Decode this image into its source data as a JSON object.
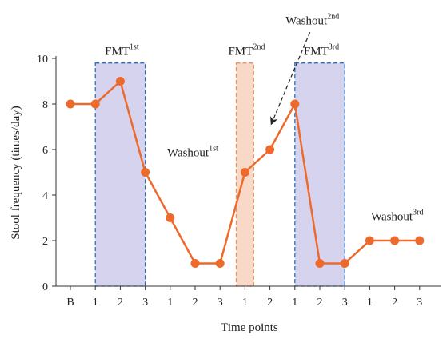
{
  "chart_data": {
    "type": "line",
    "xlabel": "Time points",
    "ylabel": "Stool frequency (times/day)",
    "ylim": [
      0,
      10
    ],
    "yticks": [
      0,
      2,
      4,
      6,
      8,
      10
    ],
    "categories": [
      "B",
      "1",
      "2",
      "3",
      "1",
      "2",
      "3",
      "1",
      "2",
      "1",
      "2",
      "3",
      "1",
      "2",
      "3"
    ],
    "series": [
      {
        "values": [
          8,
          8,
          9,
          5,
          3,
          1,
          1,
          5,
          6,
          8,
          1,
          1,
          2,
          2,
          2
        ]
      }
    ],
    "grid": false,
    "legend": "none",
    "colors": {
      "line": "#ee6a2c",
      "fmt_fill": "#d5d3ee",
      "fmt_border": "#2d6fb8",
      "fmt2_fill": "#f8d8c6",
      "fmt2_border": "#e0956a",
      "axis": "#333333",
      "arrow": "#222222"
    },
    "periods": [
      {
        "label": "FMT",
        "sup": "1st",
        "start_index": 1,
        "end_index": 3,
        "ymax": 9.8,
        "style": "fmt"
      },
      {
        "label": "FMT",
        "sup": "2nd",
        "start_index": 6.65,
        "end_index": 7.35,
        "ymax": 9.8,
        "style": "fmt2"
      },
      {
        "label": "FMT",
        "sup": "3rd",
        "start_index": 9,
        "end_index": 11,
        "ymax": 9.8,
        "style": "fmt"
      }
    ],
    "annotations": [
      {
        "label": "Washout",
        "sup": "1st",
        "x_index": 4.9,
        "y": 5.7
      },
      {
        "label": "Washout",
        "sup": "2nd",
        "x_index": 9.7,
        "y": 11.5,
        "arrow_to": {
          "x_index": 8.0,
          "y": 7.0
        }
      },
      {
        "label": "Washout",
        "sup": "3rd",
        "x_index": 13.1,
        "y": 2.9
      }
    ]
  }
}
